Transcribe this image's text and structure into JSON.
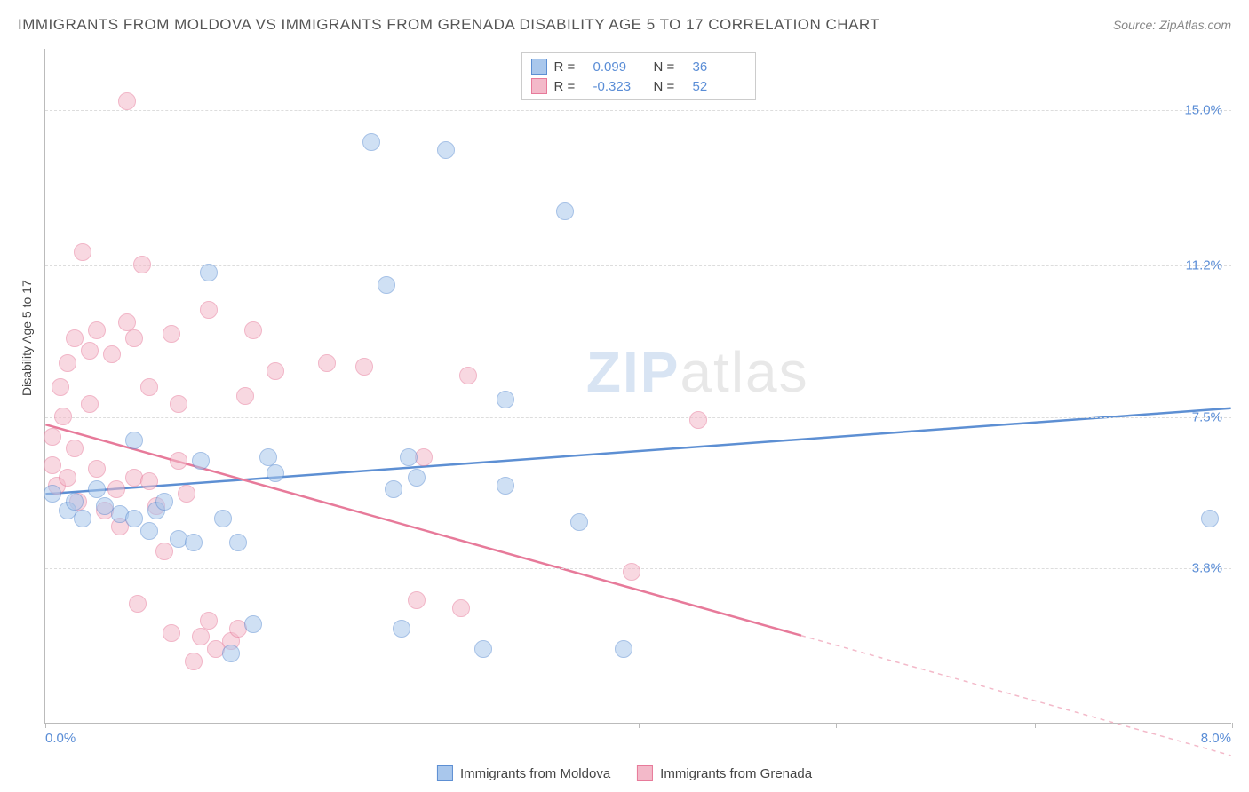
{
  "title": "IMMIGRANTS FROM MOLDOVA VS IMMIGRANTS FROM GRENADA DISABILITY AGE 5 TO 17 CORRELATION CHART",
  "source": "Source: ZipAtlas.com",
  "ylabel": "Disability Age 5 to 17",
  "watermark_a": "ZIP",
  "watermark_b": "atlas",
  "chart": {
    "type": "scatter-with-regression",
    "xlim": [
      0.0,
      8.0
    ],
    "ylim": [
      0.0,
      16.5
    ],
    "x_tick_left": "0.0%",
    "x_tick_right": "8.0%",
    "x_tick_marks": [
      0.0,
      1.33,
      2.67,
      4.0,
      5.33,
      6.67,
      8.0
    ],
    "y_ticks": [
      {
        "v": 3.8,
        "label": "3.8%"
      },
      {
        "v": 7.5,
        "label": "7.5%"
      },
      {
        "v": 11.2,
        "label": "11.2%"
      },
      {
        "v": 15.0,
        "label": "15.0%"
      }
    ],
    "background_color": "#ffffff",
    "grid_color": "#dddddd",
    "point_radius": 10,
    "point_opacity": 0.55,
    "series": [
      {
        "key": "moldova",
        "label": "Immigrants from Moldova",
        "color_fill": "#a9c7ec",
        "color_stroke": "#5d8fd3",
        "R": "0.099",
        "N": "36",
        "trend": {
          "y_at_x0": 5.6,
          "y_at_x8": 7.7,
          "solid_to_x": 8.0
        },
        "points": [
          [
            0.05,
            5.6
          ],
          [
            0.15,
            5.2
          ],
          [
            0.2,
            5.4
          ],
          [
            0.25,
            5.0
          ],
          [
            0.35,
            5.7
          ],
          [
            0.4,
            5.3
          ],
          [
            0.5,
            5.1
          ],
          [
            0.6,
            5.0
          ],
          [
            0.7,
            4.7
          ],
          [
            0.75,
            5.2
          ],
          [
            0.8,
            5.4
          ],
          [
            0.9,
            4.5
          ],
          [
            1.0,
            4.4
          ],
          [
            1.05,
            6.4
          ],
          [
            1.1,
            11.0
          ],
          [
            0.6,
            6.9
          ],
          [
            1.2,
            5.0
          ],
          [
            1.25,
            1.7
          ],
          [
            1.3,
            4.4
          ],
          [
            1.4,
            2.4
          ],
          [
            1.5,
            6.5
          ],
          [
            1.55,
            6.1
          ],
          [
            2.2,
            14.2
          ],
          [
            2.3,
            10.7
          ],
          [
            2.35,
            5.7
          ],
          [
            2.4,
            2.3
          ],
          [
            2.45,
            6.5
          ],
          [
            2.5,
            6.0
          ],
          [
            2.7,
            14.0
          ],
          [
            2.95,
            1.8
          ],
          [
            3.1,
            7.9
          ],
          [
            3.5,
            12.5
          ],
          [
            3.6,
            4.9
          ],
          [
            3.9,
            1.8
          ],
          [
            3.1,
            5.8
          ],
          [
            7.85,
            5.0
          ]
        ]
      },
      {
        "key": "grenada",
        "label": "Immigrants from Grenada",
        "color_fill": "#f3b9c9",
        "color_stroke": "#e77a9a",
        "R": "-0.323",
        "N": "52",
        "trend": {
          "y_at_x0": 7.3,
          "y_at_x8": -0.8,
          "solid_to_x": 5.1
        },
        "points": [
          [
            0.05,
            7.0
          ],
          [
            0.05,
            6.3
          ],
          [
            0.08,
            5.8
          ],
          [
            0.1,
            8.2
          ],
          [
            0.12,
            7.5
          ],
          [
            0.15,
            6.0
          ],
          [
            0.15,
            8.8
          ],
          [
            0.2,
            9.4
          ],
          [
            0.2,
            6.7
          ],
          [
            0.22,
            5.4
          ],
          [
            0.25,
            11.5
          ],
          [
            0.3,
            9.1
          ],
          [
            0.3,
            7.8
          ],
          [
            0.35,
            9.6
          ],
          [
            0.35,
            6.2
          ],
          [
            0.4,
            5.2
          ],
          [
            0.45,
            9.0
          ],
          [
            0.48,
            5.7
          ],
          [
            0.5,
            4.8
          ],
          [
            0.55,
            9.8
          ],
          [
            0.55,
            15.2
          ],
          [
            0.6,
            9.4
          ],
          [
            0.6,
            6.0
          ],
          [
            0.62,
            2.9
          ],
          [
            0.65,
            11.2
          ],
          [
            0.7,
            8.2
          ],
          [
            0.7,
            5.9
          ],
          [
            0.75,
            5.3
          ],
          [
            0.8,
            4.2
          ],
          [
            0.85,
            9.5
          ],
          [
            0.85,
            2.2
          ],
          [
            0.9,
            7.8
          ],
          [
            0.9,
            6.4
          ],
          [
            0.95,
            5.6
          ],
          [
            1.0,
            1.5
          ],
          [
            1.05,
            2.1
          ],
          [
            1.1,
            2.5
          ],
          [
            1.1,
            10.1
          ],
          [
            1.15,
            1.8
          ],
          [
            1.25,
            2.0
          ],
          [
            1.3,
            2.3
          ],
          [
            1.35,
            8.0
          ],
          [
            1.4,
            9.6
          ],
          [
            1.55,
            8.6
          ],
          [
            1.9,
            8.8
          ],
          [
            2.15,
            8.7
          ],
          [
            2.5,
            3.0
          ],
          [
            2.55,
            6.5
          ],
          [
            2.8,
            2.8
          ],
          [
            2.85,
            8.5
          ],
          [
            3.95,
            3.7
          ],
          [
            4.4,
            7.4
          ]
        ]
      }
    ]
  },
  "legend_labels": {
    "R": "R =",
    "N": "N ="
  }
}
